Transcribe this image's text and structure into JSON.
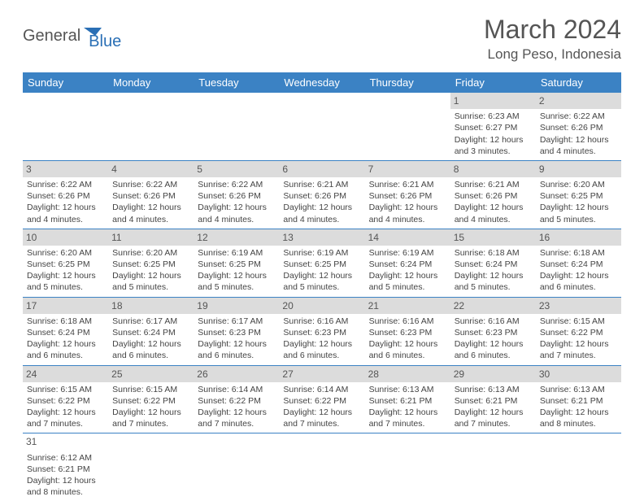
{
  "logo": {
    "general": "General",
    "blue": "Blue"
  },
  "title": "March 2024",
  "location": "Long Peso, Indonesia",
  "colors": {
    "header_bg": "#3b82c4",
    "header_text": "#ffffff",
    "daynum_bg": "#dcdcdc",
    "border": "#3b82c4",
    "text": "#444444",
    "title_text": "#555555"
  },
  "weekdays": [
    "Sunday",
    "Monday",
    "Tuesday",
    "Wednesday",
    "Thursday",
    "Friday",
    "Saturday"
  ],
  "weeks": [
    [
      null,
      null,
      null,
      null,
      null,
      {
        "n": "1",
        "sr": "Sunrise: 6:23 AM",
        "ss": "Sunset: 6:27 PM",
        "dl": "Daylight: 12 hours and 3 minutes."
      },
      {
        "n": "2",
        "sr": "Sunrise: 6:22 AM",
        "ss": "Sunset: 6:26 PM",
        "dl": "Daylight: 12 hours and 4 minutes."
      }
    ],
    [
      {
        "n": "3",
        "sr": "Sunrise: 6:22 AM",
        "ss": "Sunset: 6:26 PM",
        "dl": "Daylight: 12 hours and 4 minutes."
      },
      {
        "n": "4",
        "sr": "Sunrise: 6:22 AM",
        "ss": "Sunset: 6:26 PM",
        "dl": "Daylight: 12 hours and 4 minutes."
      },
      {
        "n": "5",
        "sr": "Sunrise: 6:22 AM",
        "ss": "Sunset: 6:26 PM",
        "dl": "Daylight: 12 hours and 4 minutes."
      },
      {
        "n": "6",
        "sr": "Sunrise: 6:21 AM",
        "ss": "Sunset: 6:26 PM",
        "dl": "Daylight: 12 hours and 4 minutes."
      },
      {
        "n": "7",
        "sr": "Sunrise: 6:21 AM",
        "ss": "Sunset: 6:26 PM",
        "dl": "Daylight: 12 hours and 4 minutes."
      },
      {
        "n": "8",
        "sr": "Sunrise: 6:21 AM",
        "ss": "Sunset: 6:26 PM",
        "dl": "Daylight: 12 hours and 4 minutes."
      },
      {
        "n": "9",
        "sr": "Sunrise: 6:20 AM",
        "ss": "Sunset: 6:25 PM",
        "dl": "Daylight: 12 hours and 5 minutes."
      }
    ],
    [
      {
        "n": "10",
        "sr": "Sunrise: 6:20 AM",
        "ss": "Sunset: 6:25 PM",
        "dl": "Daylight: 12 hours and 5 minutes."
      },
      {
        "n": "11",
        "sr": "Sunrise: 6:20 AM",
        "ss": "Sunset: 6:25 PM",
        "dl": "Daylight: 12 hours and 5 minutes."
      },
      {
        "n": "12",
        "sr": "Sunrise: 6:19 AM",
        "ss": "Sunset: 6:25 PM",
        "dl": "Daylight: 12 hours and 5 minutes."
      },
      {
        "n": "13",
        "sr": "Sunrise: 6:19 AM",
        "ss": "Sunset: 6:25 PM",
        "dl": "Daylight: 12 hours and 5 minutes."
      },
      {
        "n": "14",
        "sr": "Sunrise: 6:19 AM",
        "ss": "Sunset: 6:24 PM",
        "dl": "Daylight: 12 hours and 5 minutes."
      },
      {
        "n": "15",
        "sr": "Sunrise: 6:18 AM",
        "ss": "Sunset: 6:24 PM",
        "dl": "Daylight: 12 hours and 5 minutes."
      },
      {
        "n": "16",
        "sr": "Sunrise: 6:18 AM",
        "ss": "Sunset: 6:24 PM",
        "dl": "Daylight: 12 hours and 6 minutes."
      }
    ],
    [
      {
        "n": "17",
        "sr": "Sunrise: 6:18 AM",
        "ss": "Sunset: 6:24 PM",
        "dl": "Daylight: 12 hours and 6 minutes."
      },
      {
        "n": "18",
        "sr": "Sunrise: 6:17 AM",
        "ss": "Sunset: 6:24 PM",
        "dl": "Daylight: 12 hours and 6 minutes."
      },
      {
        "n": "19",
        "sr": "Sunrise: 6:17 AM",
        "ss": "Sunset: 6:23 PM",
        "dl": "Daylight: 12 hours and 6 minutes."
      },
      {
        "n": "20",
        "sr": "Sunrise: 6:16 AM",
        "ss": "Sunset: 6:23 PM",
        "dl": "Daylight: 12 hours and 6 minutes."
      },
      {
        "n": "21",
        "sr": "Sunrise: 6:16 AM",
        "ss": "Sunset: 6:23 PM",
        "dl": "Daylight: 12 hours and 6 minutes."
      },
      {
        "n": "22",
        "sr": "Sunrise: 6:16 AM",
        "ss": "Sunset: 6:23 PM",
        "dl": "Daylight: 12 hours and 6 minutes."
      },
      {
        "n": "23",
        "sr": "Sunrise: 6:15 AM",
        "ss": "Sunset: 6:22 PM",
        "dl": "Daylight: 12 hours and 7 minutes."
      }
    ],
    [
      {
        "n": "24",
        "sr": "Sunrise: 6:15 AM",
        "ss": "Sunset: 6:22 PM",
        "dl": "Daylight: 12 hours and 7 minutes."
      },
      {
        "n": "25",
        "sr": "Sunrise: 6:15 AM",
        "ss": "Sunset: 6:22 PM",
        "dl": "Daylight: 12 hours and 7 minutes."
      },
      {
        "n": "26",
        "sr": "Sunrise: 6:14 AM",
        "ss": "Sunset: 6:22 PM",
        "dl": "Daylight: 12 hours and 7 minutes."
      },
      {
        "n": "27",
        "sr": "Sunrise: 6:14 AM",
        "ss": "Sunset: 6:22 PM",
        "dl": "Daylight: 12 hours and 7 minutes."
      },
      {
        "n": "28",
        "sr": "Sunrise: 6:13 AM",
        "ss": "Sunset: 6:21 PM",
        "dl": "Daylight: 12 hours and 7 minutes."
      },
      {
        "n": "29",
        "sr": "Sunrise: 6:13 AM",
        "ss": "Sunset: 6:21 PM",
        "dl": "Daylight: 12 hours and 7 minutes."
      },
      {
        "n": "30",
        "sr": "Sunrise: 6:13 AM",
        "ss": "Sunset: 6:21 PM",
        "dl": "Daylight: 12 hours and 8 minutes."
      }
    ],
    [
      {
        "n": "31",
        "sr": "Sunrise: 6:12 AM",
        "ss": "Sunset: 6:21 PM",
        "dl": "Daylight: 12 hours and 8 minutes."
      },
      null,
      null,
      null,
      null,
      null,
      null
    ]
  ]
}
